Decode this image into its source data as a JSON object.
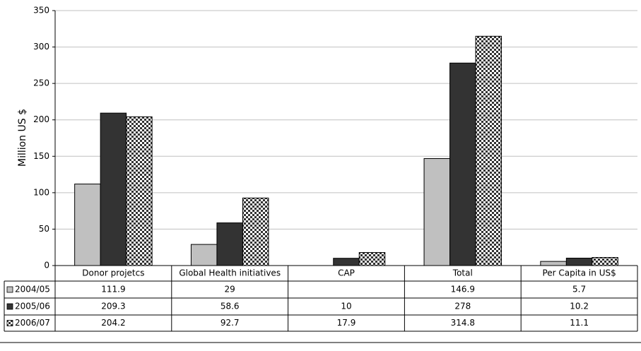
{
  "chart_data": {
    "type": "bar",
    "y_label": "Million US $",
    "categories": [
      "Donor projetcs",
      "Global Health initiatives",
      "CAP",
      "Total",
      "Per Capita in US$"
    ],
    "series": [
      {
        "name": "2004/05",
        "color": "#c0c0c0",
        "values": [
          111.9,
          29,
          null,
          146.9,
          5.7
        ]
      },
      {
        "name": "2005/06",
        "color": "#333333",
        "values": [
          209.3,
          58.6,
          10,
          278,
          10.2
        ]
      },
      {
        "name": "2006/07",
        "color": "#333333",
        "pattern": "checkerboard",
        "values": [
          204.2,
          92.7,
          17.9,
          314.8,
          11.1
        ]
      }
    ],
    "ylim": [
      0,
      350
    ],
    "yticks": [
      0,
      50,
      100,
      150,
      200,
      250,
      300,
      350
    ],
    "grid": true,
    "data_table": true
  }
}
